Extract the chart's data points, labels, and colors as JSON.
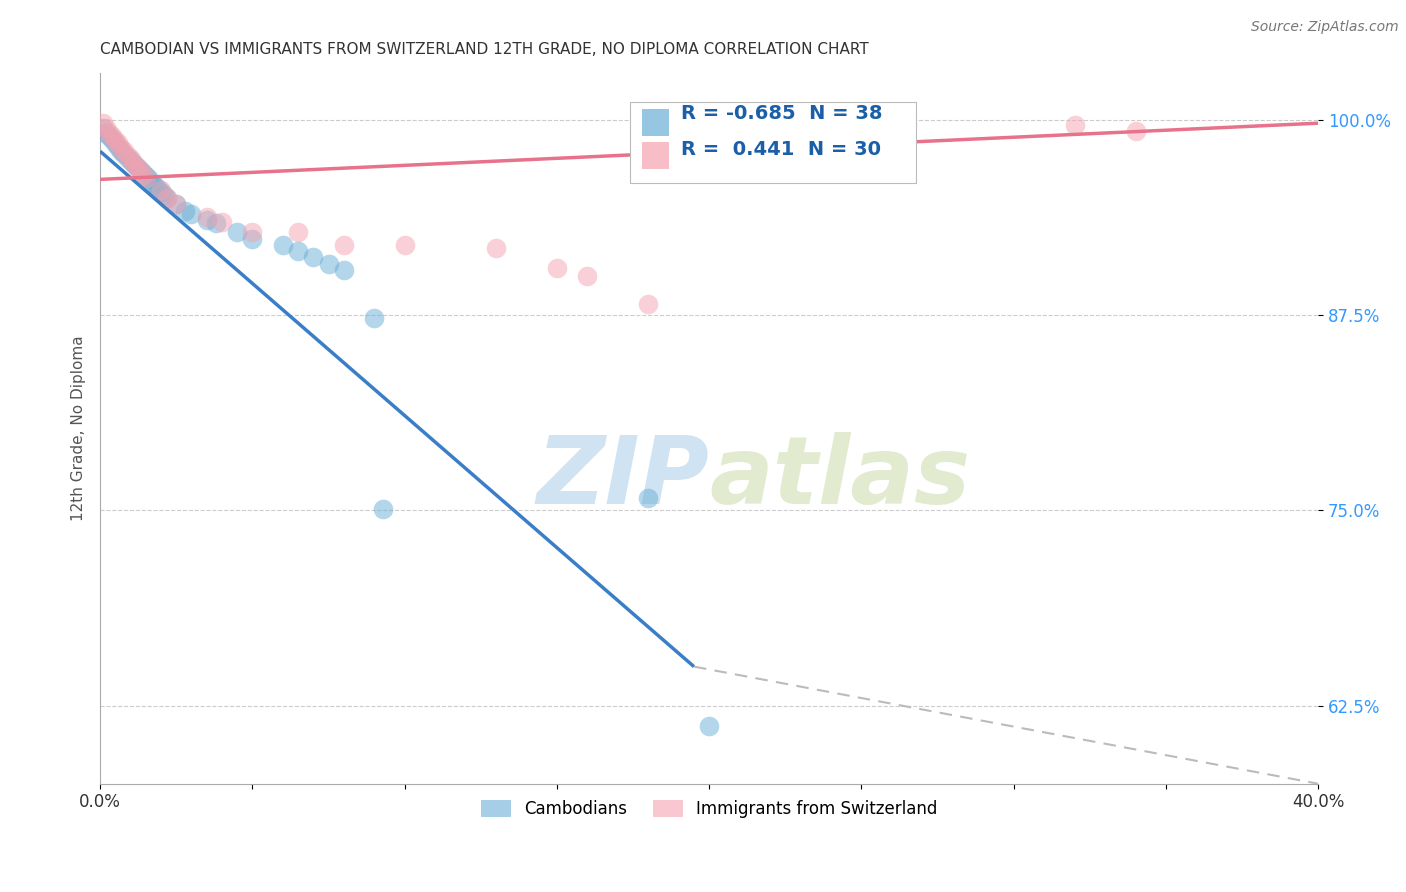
{
  "title": "CAMBODIAN VS IMMIGRANTS FROM SWITZERLAND 12TH GRADE, NO DIPLOMA CORRELATION CHART",
  "source": "Source: ZipAtlas.com",
  "ylabel": "12th Grade, No Diploma",
  "xlim": [
    0.0,
    0.4
  ],
  "ylim": [
    0.575,
    1.03
  ],
  "yticks": [
    1.0,
    0.875,
    0.75,
    0.625
  ],
  "ytick_labels": [
    "100.0%",
    "87.5%",
    "75.0%",
    "62.5%"
  ],
  "xticks": [
    0.0,
    0.05,
    0.1,
    0.15,
    0.2,
    0.25,
    0.3,
    0.35,
    0.4
  ],
  "xtick_labels": [
    "0.0%",
    "",
    "",
    "",
    "",
    "",
    "",
    "",
    "40.0%"
  ],
  "cambodian_color": "#6baed6",
  "swiss_color": "#f4a3b0",
  "legend_R_cambodian": "-0.685",
  "legend_N_cambodian": "38",
  "legend_R_swiss": "0.441",
  "legend_N_swiss": "30",
  "watermark_zip": "ZIP",
  "watermark_atlas": "atlas",
  "cambodian_points": [
    [
      0.001,
      0.995
    ],
    [
      0.002,
      0.992
    ],
    [
      0.003,
      0.99
    ],
    [
      0.004,
      0.988
    ],
    [
      0.005,
      0.985
    ],
    [
      0.006,
      0.983
    ],
    [
      0.007,
      0.98
    ],
    [
      0.008,
      0.978
    ],
    [
      0.009,
      0.976
    ],
    [
      0.01,
      0.974
    ],
    [
      0.011,
      0.972
    ],
    [
      0.012,
      0.97
    ],
    [
      0.013,
      0.968
    ],
    [
      0.014,
      0.966
    ],
    [
      0.015,
      0.964
    ],
    [
      0.016,
      0.962
    ],
    [
      0.017,
      0.96
    ],
    [
      0.018,
      0.958
    ],
    [
      0.019,
      0.956
    ],
    [
      0.02,
      0.954
    ],
    [
      0.021,
      0.952
    ],
    [
      0.022,
      0.95
    ],
    [
      0.025,
      0.946
    ],
    [
      0.028,
      0.942
    ],
    [
      0.03,
      0.94
    ],
    [
      0.035,
      0.936
    ],
    [
      0.038,
      0.934
    ],
    [
      0.045,
      0.928
    ],
    [
      0.05,
      0.924
    ],
    [
      0.06,
      0.92
    ],
    [
      0.065,
      0.916
    ],
    [
      0.07,
      0.912
    ],
    [
      0.075,
      0.908
    ],
    [
      0.08,
      0.904
    ],
    [
      0.09,
      0.873
    ],
    [
      0.093,
      0.751
    ],
    [
      0.18,
      0.758
    ],
    [
      0.2,
      0.612
    ]
  ],
  "swiss_points": [
    [
      0.001,
      0.998
    ],
    [
      0.002,
      0.995
    ],
    [
      0.003,
      0.992
    ],
    [
      0.004,
      0.99
    ],
    [
      0.005,
      0.987
    ],
    [
      0.006,
      0.985
    ],
    [
      0.007,
      0.982
    ],
    [
      0.008,
      0.98
    ],
    [
      0.009,
      0.977
    ],
    [
      0.01,
      0.975
    ],
    [
      0.011,
      0.972
    ],
    [
      0.012,
      0.97
    ],
    [
      0.013,
      0.968
    ],
    [
      0.014,
      0.965
    ],
    [
      0.015,
      0.963
    ],
    [
      0.02,
      0.955
    ],
    [
      0.022,
      0.95
    ],
    [
      0.025,
      0.946
    ],
    [
      0.035,
      0.938
    ],
    [
      0.04,
      0.935
    ],
    [
      0.05,
      0.928
    ],
    [
      0.065,
      0.928
    ],
    [
      0.08,
      0.92
    ],
    [
      0.1,
      0.92
    ],
    [
      0.13,
      0.918
    ],
    [
      0.15,
      0.905
    ],
    [
      0.16,
      0.9
    ],
    [
      0.18,
      0.882
    ],
    [
      0.32,
      0.997
    ],
    [
      0.34,
      0.993
    ]
  ],
  "blue_line_solid": {
    "x0": 0.0,
    "y0": 0.98,
    "x1": 0.195,
    "y1": 0.65
  },
  "blue_line_dashed": {
    "x0": 0.195,
    "y0": 0.65,
    "x1": 0.4,
    "y1": 0.575
  },
  "pink_line": {
    "x0": 0.0,
    "y0": 0.962,
    "x1": 0.4,
    "y1": 0.998
  }
}
